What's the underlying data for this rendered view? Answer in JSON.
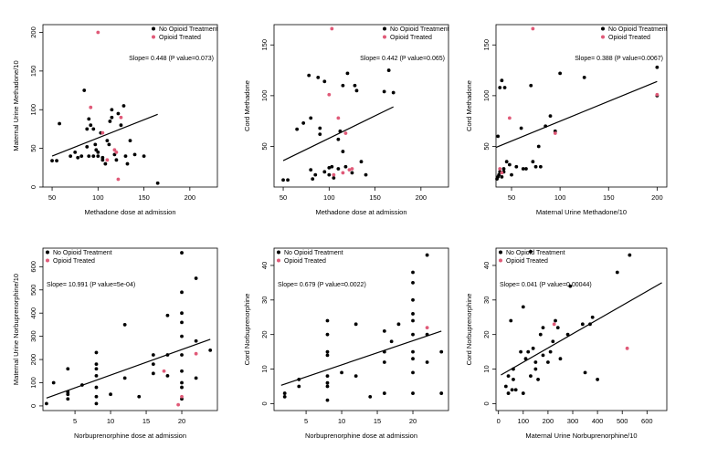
{
  "chart_data": [
    {
      "type": "scatter",
      "xlabel": "Methadone dose at admission",
      "ylabel": "Maternal Urine Methadone/10",
      "xlim": [
        40,
        230
      ],
      "ylim": [
        0,
        210
      ],
      "xticks": [
        50,
        100,
        150,
        200
      ],
      "yticks": [
        0,
        50,
        100,
        150,
        200
      ],
      "legend": {
        "placement": "top-right",
        "entries": [
          "No Opioid Treatment",
          "Opioid Treated"
        ]
      },
      "slope_text": "Slope= 0.448 (P value=0.073)",
      "fit": {
        "x": [
          50,
          165
        ],
        "y": [
          40,
          94
        ]
      },
      "series": [
        {
          "name": "No Opioid Treatment",
          "color": "#000000",
          "x": [
            50,
            55,
            58,
            70,
            75,
            78,
            82,
            85,
            88,
            90,
            90,
            92,
            95,
            95,
            97,
            100,
            100,
            103,
            105,
            108,
            110,
            112,
            113,
            115,
            115,
            118,
            120,
            122,
            125,
            128,
            130,
            132,
            135,
            140,
            150,
            165,
            105,
            98,
            88
          ],
          "y": [
            34,
            34,
            82,
            40,
            45,
            38,
            40,
            125,
            75,
            88,
            40,
            80,
            40,
            75,
            55,
            45,
            40,
            70,
            35,
            30,
            60,
            55,
            85,
            90,
            100,
            42,
            35,
            95,
            80,
            105,
            40,
            30,
            60,
            42,
            40,
            5,
            38,
            48,
            52
          ]
        },
        {
          "name": "Opioid Treated",
          "color": "#e05a78",
          "x": [
            100,
            92,
            105,
            110,
            118,
            120,
            122,
            125
          ],
          "y": [
            200,
            103,
            70,
            35,
            48,
            45,
            10,
            90
          ]
        }
      ]
    },
    {
      "type": "scatter",
      "xlabel": "Methadone dose at admission",
      "ylabel": "Cord Methadone",
      "xlim": [
        40,
        230
      ],
      "ylim": [
        10,
        170
      ],
      "xticks": [
        50,
        100,
        150,
        200
      ],
      "yticks": [
        50,
        100,
        150
      ],
      "legend": {
        "placement": "top-right",
        "entries": [
          "No Opioid Treatment",
          "Opioid Treated"
        ]
      },
      "slope_text": "Slope= 0.442 (P value=0.065)",
      "fit": {
        "x": [
          50,
          170
        ],
        "y": [
          36,
          89
        ]
      },
      "series": [
        {
          "name": "No Opioid Treatment",
          "color": "#000000",
          "x": [
            50,
            55,
            65,
            72,
            78,
            80,
            82,
            85,
            88,
            90,
            95,
            95,
            100,
            100,
            103,
            105,
            110,
            112,
            115,
            115,
            118,
            120,
            125,
            128,
            130,
            135,
            140,
            160,
            170,
            165,
            80,
            90,
            110
          ],
          "y": [
            17,
            17,
            67,
            73,
            120,
            78,
            18,
            22,
            118,
            62,
            114,
            25,
            22,
            29,
            30,
            19,
            28,
            65,
            110,
            45,
            30,
            122,
            24,
            110,
            105,
            35,
            22,
            104,
            103,
            125,
            27,
            68,
            57
          ]
        },
        {
          "name": "Opioid Treated",
          "color": "#e05a78",
          "x": [
            103,
            100,
            110,
            118,
            122,
            115,
            105,
            125
          ],
          "y": [
            166,
            101,
            78,
            63,
            27,
            24,
            22,
            28
          ]
        }
      ]
    },
    {
      "type": "scatter",
      "xlabel": "Maternal Urine Methadone/10",
      "ylabel": "Cord Methadone",
      "xlim": [
        34,
        210
      ],
      "ylim": [
        10,
        170
      ],
      "xticks": [
        50,
        100,
        150,
        200
      ],
      "yticks": [
        50,
        100,
        150
      ],
      "legend": {
        "placement": "top-right",
        "entries": [
          "No Opioid Treatment",
          "Opioid Treated"
        ]
      },
      "slope_text": "Slope= 0.388 (P value=0.0067)",
      "fit": {
        "x": [
          34,
          200
        ],
        "y": [
          49,
          114
        ]
      },
      "series": [
        {
          "name": "No Opioid Treatment",
          "color": "#000000",
          "x": [
            35,
            36,
            37,
            38,
            40,
            40,
            42,
            43,
            45,
            48,
            55,
            60,
            65,
            70,
            72,
            75,
            78,
            80,
            85,
            90,
            95,
            100,
            125,
            200,
            200,
            38,
            42,
            36,
            50,
            62
          ],
          "y": [
            18,
            60,
            22,
            108,
            115,
            20,
            25,
            108,
            35,
            32,
            30,
            68,
            28,
            110,
            35,
            30,
            50,
            30,
            70,
            80,
            65,
            122,
            118,
            128,
            100,
            25,
            28,
            20,
            22,
            28
          ]
        },
        {
          "name": "Opioid Treated",
          "color": "#e05a78",
          "x": [
            72,
            48,
            95,
            200,
            38,
            40
          ],
          "y": [
            166,
            78,
            63,
            101,
            28,
            24
          ]
        }
      ]
    },
    {
      "type": "scatter",
      "xlabel": "Norbuprenorphine dose at admission",
      "ylabel": "Maternal Urine Norbuprenorphine/10",
      "xlim": [
        0.5,
        25
      ],
      "ylim": [
        -20,
        680
      ],
      "xticks": [
        5,
        10,
        15,
        20
      ],
      "yticks": [
        0,
        100,
        200,
        300,
        400,
        500,
        600
      ],
      "legend": {
        "placement": "top-left",
        "entries": [
          "No Opioid Treatment",
          "Opioid Treated"
        ]
      },
      "slope_text": "Slope= 10.991 (P value=5e-04)",
      "fit": {
        "x": [
          1,
          24
        ],
        "y": [
          34,
          287
        ]
      },
      "series": [
        {
          "name": "No Opioid Treatment",
          "color": "#000000",
          "x": [
            1,
            2,
            4,
            4,
            4,
            6,
            8,
            8,
            8,
            8,
            8,
            8,
            10,
            12,
            12,
            14,
            16,
            16,
            18,
            18,
            18,
            20,
            20,
            20,
            20,
            20,
            20,
            20,
            20,
            20,
            22,
            22,
            22,
            24,
            4,
            8,
            16,
            20
          ],
          "y": [
            10,
            100,
            160,
            50,
            30,
            90,
            230,
            180,
            130,
            80,
            40,
            10,
            50,
            350,
            120,
            40,
            220,
            180,
            390,
            220,
            130,
            660,
            490,
            400,
            360,
            300,
            220,
            150,
            80,
            30,
            550,
            280,
            120,
            240,
            60,
            160,
            140,
            100
          ]
        },
        {
          "name": "Opioid Treated",
          "color": "#e05a78",
          "x": [
            17.5,
            19.5,
            20,
            22
          ],
          "y": [
            150,
            5,
            40,
            225
          ]
        }
      ]
    },
    {
      "type": "scatter",
      "xlabel": "Norbuprenorphine dose at admission",
      "ylabel": "Cord Norbuprenorphine",
      "xlim": [
        0.5,
        25
      ],
      "ylim": [
        -2,
        45
      ],
      "xticks": [
        5,
        10,
        15,
        20
      ],
      "yticks": [
        0,
        10,
        20,
        30,
        40
      ],
      "legend": {
        "placement": "top-left",
        "entries": [
          "No Opioid Treatment",
          "Opioid Treated"
        ]
      },
      "slope_text": "Slope= 0.679 (P value=0.0022)",
      "fit": {
        "x": [
          1.5,
          24
        ],
        "y": [
          5.3,
          21
        ]
      },
      "series": [
        {
          "name": "No Opioid Treatment",
          "color": "#000000",
          "x": [
            2,
            2,
            4,
            4,
            8,
            8,
            8,
            8,
            8,
            8,
            8,
            8,
            10,
            12,
            16,
            16,
            16,
            16,
            17,
            18,
            20,
            20,
            20,
            20,
            20,
            20,
            20,
            20,
            20,
            20,
            22,
            22,
            22,
            24,
            24,
            12,
            14
          ],
          "y": [
            3,
            2,
            7,
            5,
            24,
            20,
            15,
            14,
            8,
            6,
            5,
            1,
            9,
            23,
            21,
            15,
            12,
            3,
            18,
            23,
            38,
            35,
            30,
            26,
            24,
            20,
            15,
            13,
            9,
            3,
            43,
            20,
            12,
            15,
            3,
            8,
            2
          ]
        },
        {
          "name": "Opioid Treated",
          "color": "#e05a78",
          "x": [
            22
          ],
          "y": [
            22
          ]
        }
      ]
    },
    {
      "type": "scatter",
      "xlabel": "Maternal Urine Norbuprenorphine/10",
      "ylabel": "Cord Norbuprenorphine",
      "xlim": [
        -10,
        680
      ],
      "ylim": [
        -2,
        45
      ],
      "xticks": [
        0,
        100,
        200,
        300,
        400,
        500,
        600
      ],
      "yticks": [
        0,
        10,
        20,
        30,
        40
      ],
      "legend": {
        "placement": "top-left",
        "entries": [
          "No Opioid Treatment",
          "Opioid Treated"
        ]
      },
      "slope_text": "Slope= 0.041 (P value=0.00044)",
      "fit": {
        "x": [
          10,
          660
        ],
        "y": [
          8.3,
          35
        ]
      },
      "series": [
        {
          "name": "No Opioid Treatment",
          "color": "#000000",
          "x": [
            30,
            40,
            40,
            50,
            55,
            60,
            70,
            90,
            100,
            100,
            110,
            120,
            130,
            130,
            140,
            150,
            160,
            170,
            180,
            180,
            200,
            210,
            220,
            230,
            240,
            250,
            280,
            290,
            340,
            350,
            370,
            380,
            400,
            480,
            530,
            60,
            150
          ],
          "y": [
            5,
            3,
            8,
            24,
            4,
            7,
            4,
            15,
            28,
            3,
            13,
            15,
            44,
            8,
            16,
            12,
            7,
            20,
            22,
            14,
            12,
            15,
            18,
            24,
            22,
            13,
            20,
            34,
            23,
            9,
            23,
            25,
            7,
            38,
            43,
            10,
            10
          ]
        },
        {
          "name": "Opioid Treated",
          "color": "#e05a78",
          "x": [
            225,
            520
          ],
          "y": [
            23,
            16
          ]
        }
      ]
    }
  ]
}
